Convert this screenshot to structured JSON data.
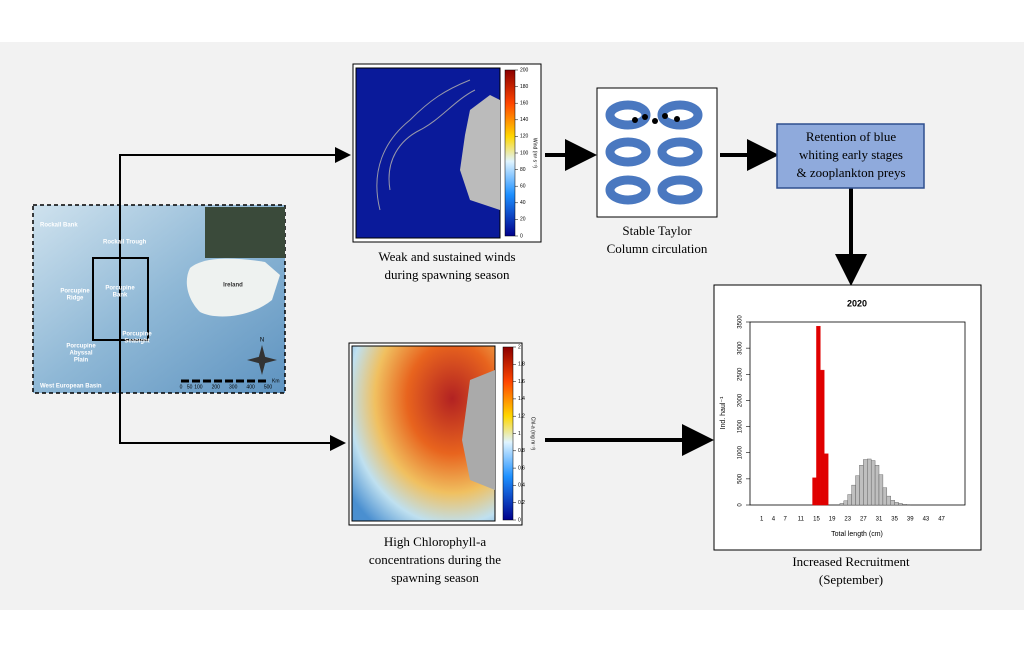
{
  "map": {
    "labels": [
      [
        "Rockall Bank"
      ],
      [
        "Rockall Trough"
      ],
      [
        "Porcupine",
        "Ridge"
      ],
      [
        "Porcupine",
        "Bank"
      ],
      [
        "Porcupine",
        "Seabight"
      ],
      [
        "Porcupine",
        "Abyssal",
        "Plain"
      ],
      [
        "West European Basin"
      ],
      [
        "Ireland"
      ]
    ],
    "scale_labels": [
      0,
      50,
      100,
      200,
      300,
      400,
      500
    ],
    "scale_unit": "Km",
    "north": "N"
  },
  "wind_map": {
    "colorbar_label": "Wind (m³ s⁻³)",
    "ticks": [
      0,
      20,
      40,
      60,
      80,
      100,
      120,
      140,
      160,
      180,
      200
    ],
    "caption": [
      "Weak and sustained winds",
      "during spawning season"
    ]
  },
  "taylor": {
    "caption": [
      "Stable Taylor",
      "Column circulation"
    ]
  },
  "retention": {
    "lines": [
      "Retention of blue",
      "whiting early stages",
      "& zooplankton preys"
    ]
  },
  "chl_map": {
    "colorbar_label": "Chl-a (mg m⁻³)",
    "ticks": [
      0,
      0.2,
      0.4,
      0.6,
      0.8,
      1,
      1.2,
      1.4,
      1.6,
      1.8,
      2
    ],
    "caption": [
      "High Chlorophyll-a",
      "concentrations during the",
      "spawning season"
    ]
  },
  "histogram": {
    "title": "2020",
    "y_label": "Ind. haul⁻¹",
    "x_label": "Total length (cm)",
    "xlim": [
      -2,
      53
    ],
    "ylim": [
      0,
      3500
    ],
    "xticks": [
      1,
      4,
      7,
      11,
      15,
      19,
      23,
      27,
      31,
      35,
      39,
      43,
      47
    ],
    "yticks": [
      0,
      500,
      1000,
      1500,
      2000,
      2500,
      3000,
      3500
    ],
    "bars": [
      {
        "color": "#e00000",
        "bins": [
          14,
          15,
          16,
          17,
          18
        ],
        "counts": [
          520,
          3420,
          2580,
          980
        ]
      },
      {
        "color": "#bfbfbf",
        "bins": [
          21,
          22,
          23,
          24,
          25,
          26,
          27,
          28,
          29,
          30,
          31,
          32,
          33,
          34,
          35,
          36,
          37,
          38,
          39
        ],
        "counts": [
          30,
          80,
          200,
          380,
          560,
          760,
          870,
          880,
          850,
          760,
          580,
          330,
          170,
          90,
          50,
          30,
          15,
          8
        ]
      }
    ]
  },
  "recruitment": {
    "caption": [
      "Increased Recruitment",
      "(September)"
    ]
  }
}
